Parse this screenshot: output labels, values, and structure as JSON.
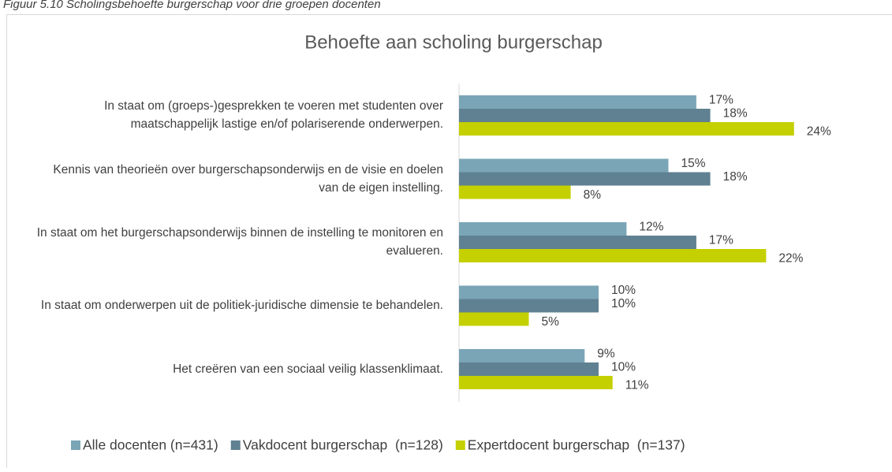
{
  "chart_data": {
    "type": "barh",
    "figure_caption": "Figuur 5.10 Scholingsbehoefte burgerschap voor drie groepen docenten",
    "title": "Behoefte aan scholing burgerschap",
    "categories": [
      "In staat om (groeps-)gesprekken te voeren met studenten over maatschappelijk lastige en/of polariserende onderwerpen.",
      "Kennis van theorieën over burgerschapsonderwijs en de visie en doelen van de eigen instelling.",
      "In staat om het burgerschapsonderwijs binnen de instelling te monitoren en evalueren.",
      "In staat om onderwerpen uit de politiek-juridische dimensie te behandelen.",
      "Het creëren van een sociaal veilig klassenklimaat."
    ],
    "series": [
      {
        "name": "Alle docenten (n=431)",
        "color": "#7aa5b7",
        "values": [
          17,
          15,
          12,
          10,
          9
        ],
        "value_labels": [
          "17%",
          "15%",
          "12%",
          "10%",
          "9%"
        ]
      },
      {
        "name": "Vakdocent burgerschap  (n=128)",
        "color": "#5f8191",
        "values": [
          18,
          18,
          17,
          10,
          10
        ],
        "value_labels": [
          "18%",
          "18%",
          "17%",
          "10%",
          "10%"
        ]
      },
      {
        "name": "Expertdocent burgerschap  (n=137)",
        "color": "#c4d000",
        "values": [
          24,
          8,
          22,
          5,
          11
        ],
        "value_labels": [
          "24%",
          "8%",
          "22%",
          "5%",
          "11%"
        ]
      }
    ],
    "xlim": [
      0,
      30
    ],
    "legend": "bottom"
  }
}
